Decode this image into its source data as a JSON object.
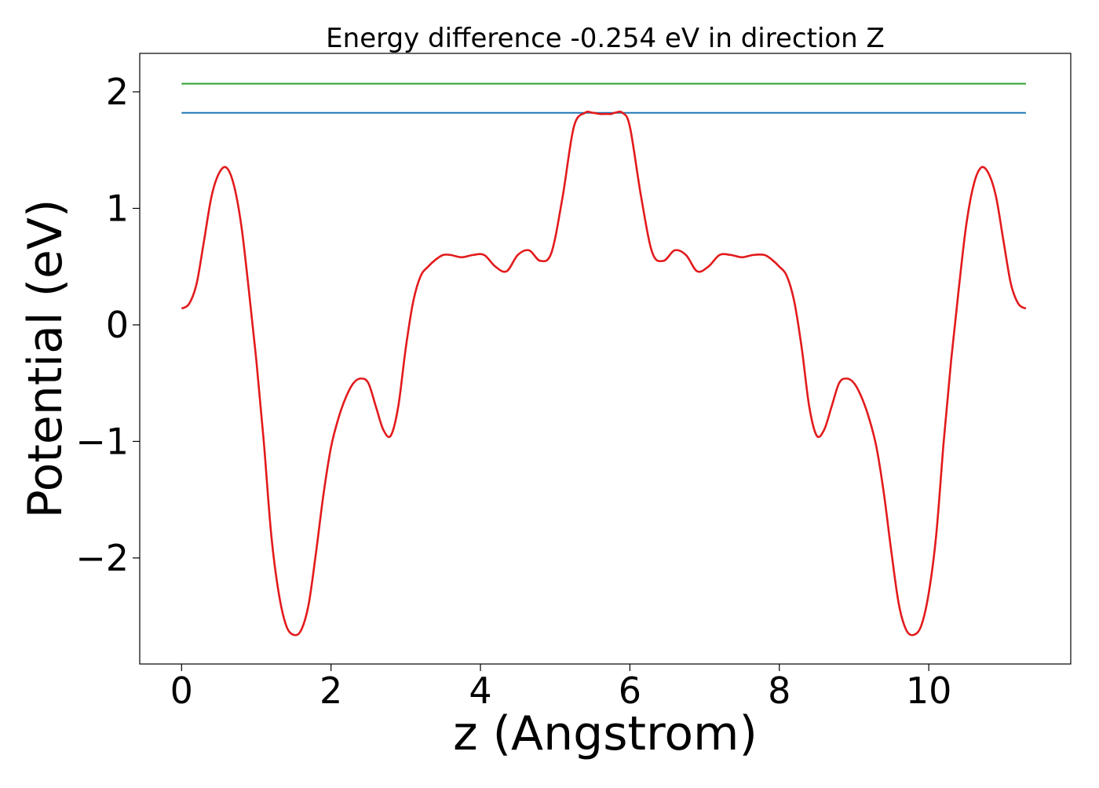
{
  "chart_data": {
    "type": "line",
    "title": "Energy difference -0.254 eV in direction Z",
    "xlabel": "z (Angstrom)",
    "ylabel": "Potential (eV)",
    "xlim": [
      -0.56,
      11.9
    ],
    "ylim": [
      -2.91,
      2.33
    ],
    "x_ticks": [
      0,
      2,
      4,
      6,
      8,
      10
    ],
    "x_tick_labels": [
      "0",
      "2",
      "4",
      "6",
      "8",
      "10"
    ],
    "y_ticks": [
      -2,
      -1,
      0,
      1,
      2
    ],
    "y_tick_labels": [
      "−2",
      "−1",
      "0",
      "1",
      "2"
    ],
    "grid": false,
    "legend": "none",
    "series": [
      {
        "color": "#e31a1c",
        "x": [
          0.0,
          0.1,
          0.2,
          0.3,
          0.4,
          0.5,
          0.6,
          0.7,
          0.8,
          0.9,
          1.0,
          1.1,
          1.2,
          1.3,
          1.4,
          1.5,
          1.6,
          1.7,
          1.8,
          1.9,
          2.0,
          2.1,
          2.2,
          2.3,
          2.4,
          2.5,
          2.6,
          2.7,
          2.8,
          2.9,
          3.0,
          3.1,
          3.2,
          3.3,
          3.4,
          3.5,
          3.6,
          3.75,
          3.9,
          4.05,
          4.2,
          4.35,
          4.5,
          4.65,
          4.8,
          4.95,
          5.1,
          5.25,
          5.4,
          5.5,
          5.6,
          5.65,
          5.7,
          5.75,
          5.8,
          5.9,
          6.0,
          6.15,
          6.3,
          6.45,
          6.6,
          6.75,
          6.9,
          7.05,
          7.2,
          7.35,
          7.5,
          7.65,
          7.8,
          7.9,
          8.0,
          8.1,
          8.2,
          8.3,
          8.4,
          8.5,
          8.6,
          8.7,
          8.8,
          8.9,
          9.0,
          9.1,
          9.2,
          9.3,
          9.4,
          9.5,
          9.6,
          9.7,
          9.8,
          9.9,
          10.0,
          10.1,
          10.2,
          10.3,
          10.4,
          10.5,
          10.6,
          10.7,
          10.8,
          10.9,
          11.0,
          11.1,
          11.2,
          11.3
        ],
        "values": [
          0.14,
          0.18,
          0.35,
          0.72,
          1.1,
          1.3,
          1.35,
          1.2,
          0.85,
          0.3,
          -0.3,
          -1.0,
          -1.8,
          -2.3,
          -2.58,
          -2.66,
          -2.62,
          -2.4,
          -1.95,
          -1.45,
          -1.05,
          -0.8,
          -0.62,
          -0.5,
          -0.46,
          -0.5,
          -0.7,
          -0.9,
          -0.95,
          -0.7,
          -0.2,
          0.2,
          0.42,
          0.5,
          0.56,
          0.6,
          0.6,
          0.58,
          0.6,
          0.6,
          0.5,
          0.46,
          0.6,
          0.64,
          0.55,
          0.62,
          1.1,
          1.7,
          1.82,
          1.82,
          1.81,
          1.81,
          1.81,
          1.81,
          1.82,
          1.82,
          1.7,
          1.1,
          0.62,
          0.55,
          0.64,
          0.6,
          0.46,
          0.5,
          0.6,
          0.6,
          0.58,
          0.6,
          0.6,
          0.56,
          0.5,
          0.42,
          0.2,
          -0.2,
          -0.7,
          -0.95,
          -0.9,
          -0.7,
          -0.5,
          -0.46,
          -0.5,
          -0.62,
          -0.8,
          -1.05,
          -1.45,
          -1.95,
          -2.4,
          -2.62,
          -2.66,
          -2.58,
          -2.3,
          -1.8,
          -1.0,
          -0.3,
          0.3,
          0.85,
          1.2,
          1.35,
          1.3,
          1.1,
          0.72,
          0.35,
          0.18,
          0.14
        ]
      },
      {
        "color": "#1f77b4",
        "x": [
          0.0,
          11.3
        ],
        "values": [
          1.82,
          1.82
        ]
      },
      {
        "color": "#2ca02c",
        "x": [
          0.0,
          11.3
        ],
        "values": [
          2.07,
          2.07
        ]
      }
    ]
  }
}
